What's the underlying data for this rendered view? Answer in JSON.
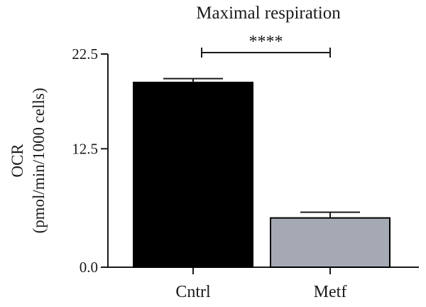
{
  "chart_data": {
    "type": "bar",
    "title": "Maximal respiration",
    "ylabel_line1": "OCR",
    "ylabel_line2": "(pmol/min/1000 cells)",
    "xlabel": "",
    "ylim": [
      0,
      22.5
    ],
    "yticks": [
      0,
      12.5,
      22.5
    ],
    "ytick_labels": [
      "0.0",
      "12.5",
      "22.5"
    ],
    "categories": [
      "Cntrl",
      "Metf"
    ],
    "values": [
      19.5,
      5.2
    ],
    "errors": [
      0.4,
      0.6
    ],
    "colors": [
      "#000000",
      "#a4a9b3"
    ],
    "significance": {
      "label": "****",
      "from_category": 0,
      "to_category": 1,
      "y": 22.65
    },
    "grid": false,
    "legend": "none"
  }
}
